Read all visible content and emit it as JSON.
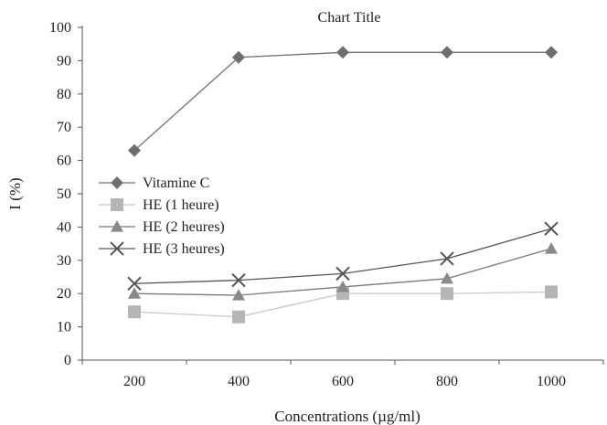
{
  "chart_data": {
    "type": "line",
    "title": "Chart Title",
    "xlabel": "Concentrations (µg/ml)",
    "ylabel": "I (%)",
    "categories": [
      "200",
      "400",
      "600",
      "800",
      "1000"
    ],
    "ylim": [
      0,
      100
    ],
    "yticks": [
      0,
      10,
      20,
      30,
      40,
      50,
      60,
      70,
      80,
      90,
      100
    ],
    "grid": false,
    "legend_position": "left",
    "series": [
      {
        "name": "Vitamine C",
        "marker": "diamond",
        "color": "#707070",
        "marker_color": "#6e6e6e",
        "values": [
          63,
          91,
          92.5,
          92.5,
          92.5
        ]
      },
      {
        "name": "HE (1 heure)",
        "marker": "square",
        "color": "#c9c9c9",
        "marker_color": "#b5b5b5",
        "values": [
          14.5,
          13,
          20,
          20,
          20.5
        ]
      },
      {
        "name": "HE (2 heures)",
        "marker": "triangle",
        "color": "#7a7a7a",
        "marker_color": "#8a8a8a",
        "values": [
          20,
          19.5,
          22,
          24.5,
          33.5
        ]
      },
      {
        "name": "HE (3 heures)",
        "marker": "x",
        "color": "#555555",
        "marker_color": "#555555",
        "values": [
          23,
          24,
          26,
          30.5,
          39.5
        ]
      }
    ]
  }
}
